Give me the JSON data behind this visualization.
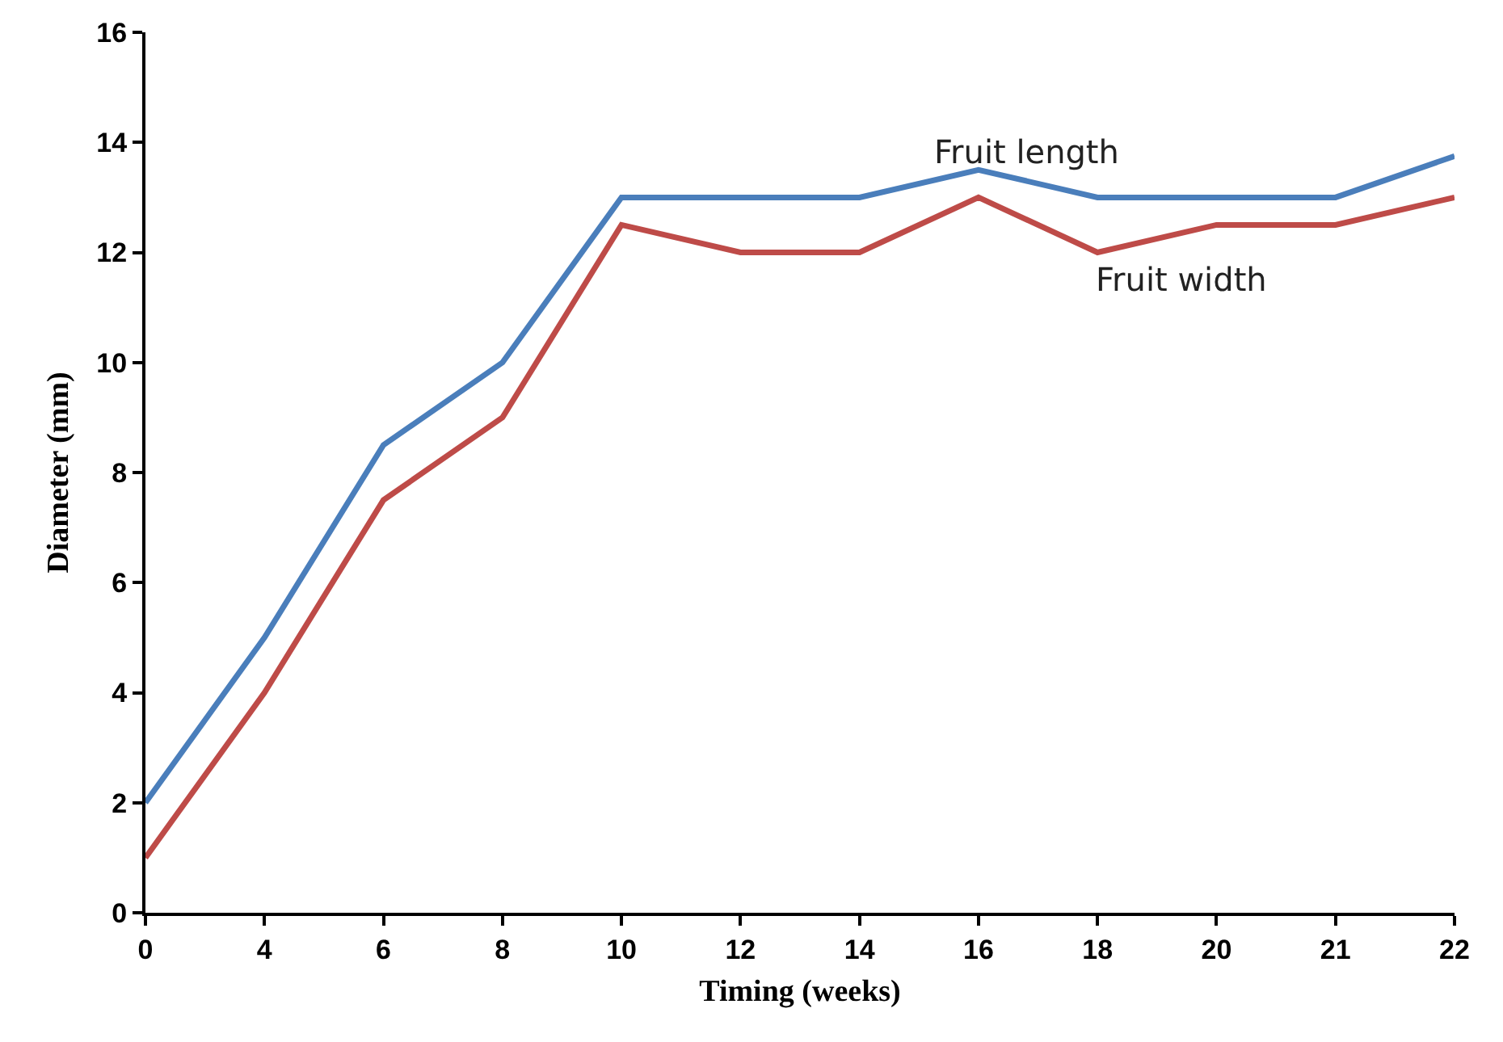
{
  "chart_data": {
    "type": "line",
    "xlabel": "Timing (weeks)",
    "ylabel": "Diameter (mm)",
    "categories": [
      "0",
      "4",
      "6",
      "8",
      "10",
      "12",
      "14",
      "16",
      "18",
      "20",
      "21",
      "22"
    ],
    "series": [
      {
        "name": "Fruit length",
        "color": "#4a7ebb",
        "values": [
          2,
          5,
          8.5,
          10,
          13,
          13,
          13,
          13.5,
          13,
          13,
          13,
          13.75
        ]
      },
      {
        "name": "Fruit width",
        "color": "#be4b48",
        "values": [
          1,
          4,
          7.5,
          9,
          12.5,
          12,
          12,
          13,
          12,
          12.5,
          12.5,
          13
        ]
      }
    ],
    "ylim": [
      0,
      16
    ],
    "yticks": [
      0,
      2,
      4,
      6,
      8,
      10,
      12,
      14,
      16
    ],
    "grid": false,
    "legend": false,
    "marker": "none",
    "line_style": "solid"
  }
}
